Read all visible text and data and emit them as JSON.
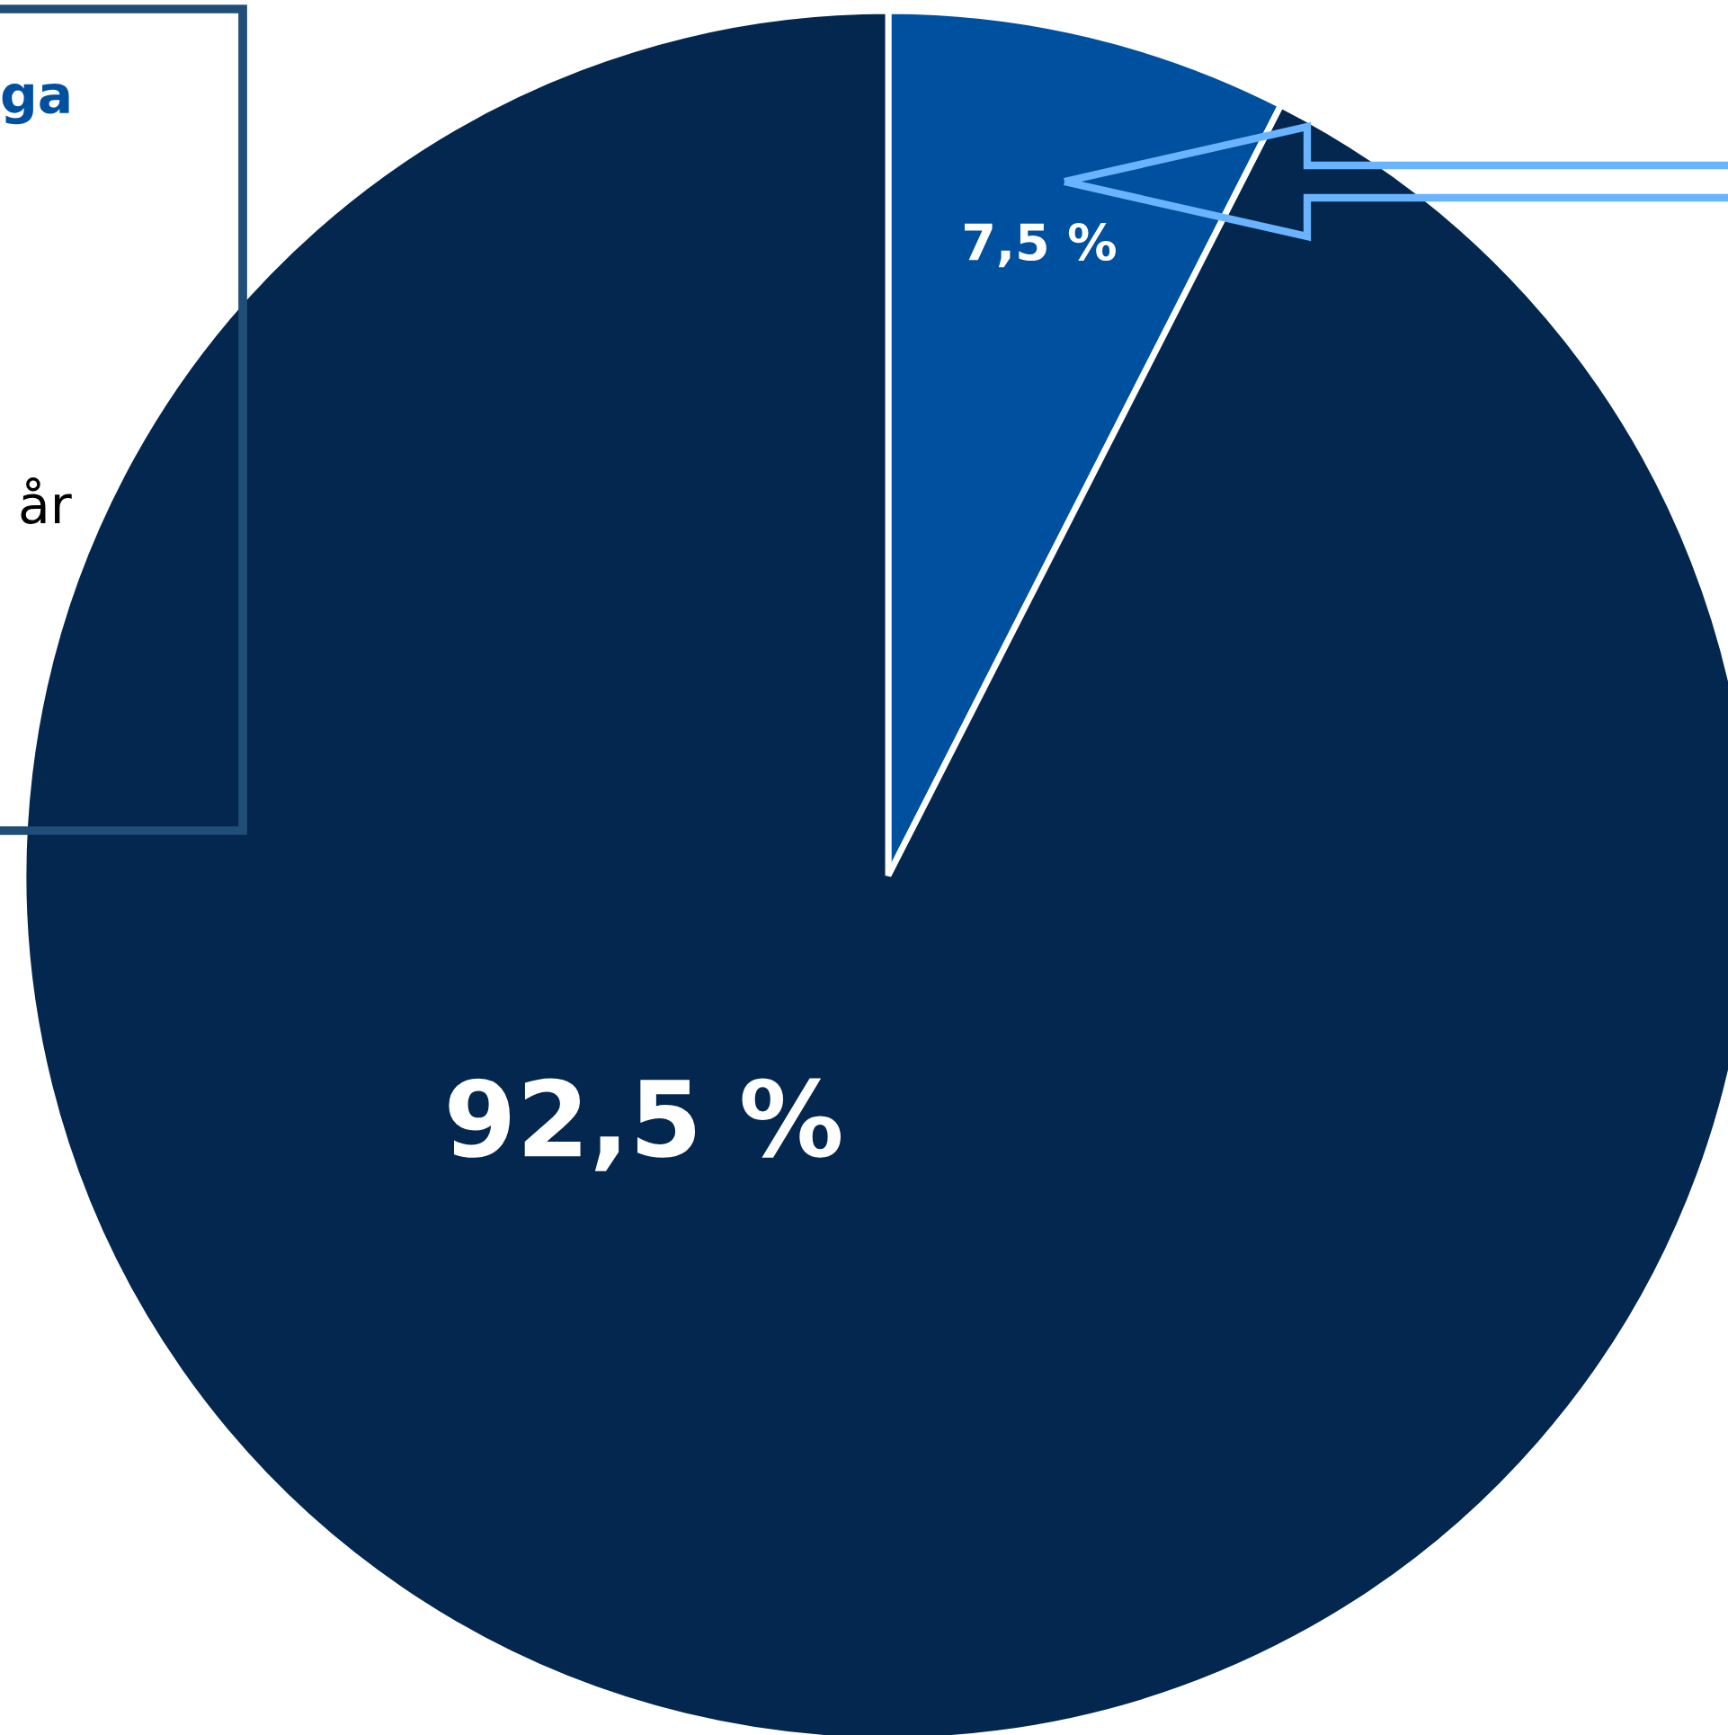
{
  "chart_data": {
    "type": "pie",
    "categories": [
      null,
      null
    ],
    "values": [
      7.5,
      92.5
    ],
    "colors": [
      "#0050a0",
      "#03274f"
    ],
    "value_labels": [
      "7,5 %",
      "92,5 %"
    ],
    "annotations": [
      "ga",
      "år"
    ],
    "legend": false
  }
}
